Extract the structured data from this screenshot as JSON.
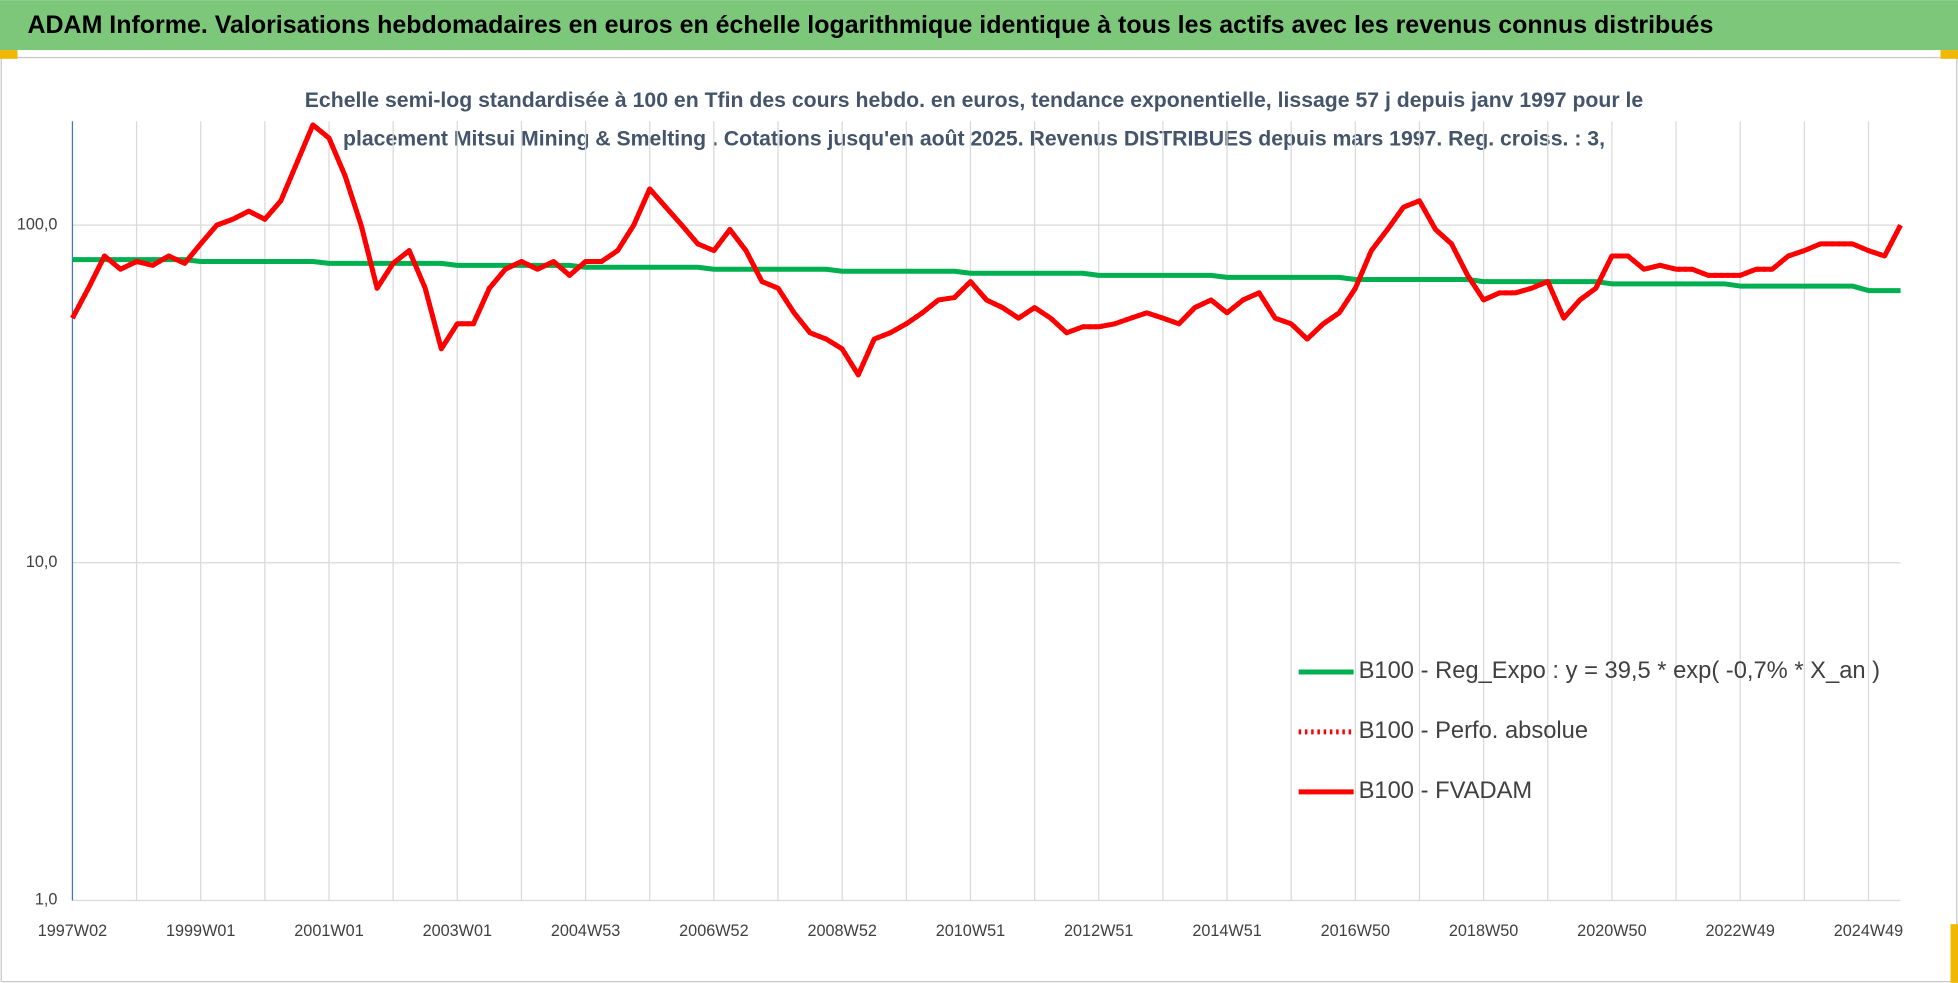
{
  "chart_data": {
    "type": "line",
    "title": "ADAM Informe. Valorisations hebdomadaires en euros en échelle logarithmique identique à tous les actifs avec les revenus connus distribués",
    "subtitle": [
      "Echelle semi-log standardisée à 100 en Tfin des cours hebdo. en euros, tendance exponentielle, lissage 57 j depuis janv 1997 pour le",
      "placement Mitsui Mining & Smelting . Cotations jusqu'en août 2025. Revenus DISTRIBUES depuis mars 1997. Reg. croiss. : 3,"
    ],
    "log_scale": true,
    "grid": true,
    "ylim": [
      1,
      203
    ],
    "yticks": [
      {
        "value": 1,
        "label": "1,0"
      },
      {
        "value": 10,
        "label": "10,0"
      },
      {
        "value": 100,
        "label": "100,0"
      }
    ],
    "legend": "right",
    "categories": [
      "1997W02",
      null,
      null,
      null,
      null,
      null,
      null,
      null,
      "1999W01",
      null,
      null,
      null,
      null,
      null,
      null,
      null,
      "2001W01",
      null,
      null,
      null,
      null,
      null,
      null,
      null,
      "2003W01",
      null,
      null,
      null,
      null,
      null,
      null,
      null,
      "2004W53",
      null,
      null,
      null,
      null,
      null,
      null,
      null,
      "2006W52",
      null,
      null,
      null,
      null,
      null,
      null,
      null,
      "2008W52",
      null,
      null,
      null,
      null,
      null,
      null,
      null,
      "2010W51",
      null,
      null,
      null,
      null,
      null,
      null,
      null,
      "2012W51",
      null,
      null,
      null,
      null,
      null,
      null,
      null,
      "2014W51",
      null,
      null,
      null,
      null,
      null,
      null,
      null,
      "2016W50",
      null,
      null,
      null,
      null,
      null,
      null,
      null,
      "2018W50",
      null,
      null,
      null,
      null,
      null,
      null,
      null,
      "2020W50",
      null,
      null,
      null,
      null,
      null,
      null,
      null,
      "2022W49",
      null,
      null,
      null,
      null,
      null,
      null,
      null,
      "2024W49",
      null,
      null
    ],
    "series": [
      {
        "name": "B100 - Reg_Expo : y = 39,5 * exp( -0,7% *  X_an )",
        "color": "#00b050",
        "dash": "solid",
        "values": [
          79,
          79,
          79,
          79,
          79,
          79,
          79,
          79,
          78,
          78,
          78,
          78,
          78,
          78,
          78,
          78,
          77,
          77,
          77,
          77,
          77,
          77,
          77,
          77,
          76,
          76,
          76,
          76,
          76,
          76,
          76,
          76,
          75,
          75,
          75,
          75,
          75,
          75,
          75,
          75,
          74,
          74,
          74,
          74,
          74,
          74,
          74,
          74,
          73,
          73,
          73,
          73,
          73,
          73,
          73,
          73,
          72,
          72,
          72,
          72,
          72,
          72,
          72,
          72,
          71,
          71,
          71,
          71,
          71,
          71,
          71,
          71,
          70,
          70,
          70,
          70,
          70,
          70,
          70,
          70,
          69,
          69,
          69,
          69,
          69,
          69,
          69,
          69,
          68,
          68,
          68,
          68,
          68,
          68,
          68,
          68,
          67,
          67,
          67,
          67,
          67,
          67,
          67,
          67,
          66,
          66,
          66,
          66,
          66,
          66,
          66,
          66,
          64,
          64,
          64
        ]
      },
      {
        "name": "B100 - Perfo. absolue",
        "color": "#ff0000",
        "dash": "dotted",
        "values": [
          53,
          65,
          81,
          74,
          78,
          76,
          81,
          77,
          88,
          100,
          104,
          110,
          104,
          118,
          153,
          198,
          181,
          140,
          100,
          65,
          77,
          84,
          65,
          43,
          51,
          51,
          65,
          74,
          78,
          74,
          78,
          71,
          78,
          78,
          84,
          100,
          128,
          113,
          100,
          88,
          84,
          97,
          84,
          68,
          65,
          55,
          48,
          46,
          43,
          36,
          46,
          48,
          51,
          55,
          60,
          61,
          68,
          60,
          57,
          53,
          57,
          53,
          48,
          50,
          50,
          51,
          53,
          55,
          53,
          51,
          57,
          60,
          55,
          60,
          63,
          53,
          51,
          46,
          51,
          55,
          65,
          84,
          97,
          113,
          118,
          97,
          88,
          71,
          60,
          63,
          63,
          65,
          68,
          53,
          60,
          65,
          81,
          81,
          74,
          76,
          74,
          74,
          71,
          71,
          71,
          74,
          74,
          81,
          84,
          88,
          88,
          88,
          84,
          81,
          100
        ]
      },
      {
        "name": "B100 - FVADAM",
        "color": "#ff0000",
        "dash": "solid",
        "values": [
          53,
          65,
          81,
          74,
          78,
          76,
          81,
          77,
          88,
          100,
          104,
          110,
          104,
          118,
          153,
          198,
          181,
          140,
          100,
          65,
          77,
          84,
          65,
          43,
          51,
          51,
          65,
          74,
          78,
          74,
          78,
          71,
          78,
          78,
          84,
          100,
          128,
          113,
          100,
          88,
          84,
          97,
          84,
          68,
          65,
          55,
          48,
          46,
          43,
          36,
          46,
          48,
          51,
          55,
          60,
          61,
          68,
          60,
          57,
          53,
          57,
          53,
          48,
          50,
          50,
          51,
          53,
          55,
          53,
          51,
          57,
          60,
          55,
          60,
          63,
          53,
          51,
          46,
          51,
          55,
          65,
          84,
          97,
          113,
          118,
          97,
          88,
          71,
          60,
          63,
          63,
          65,
          68,
          53,
          60,
          65,
          81,
          81,
          74,
          76,
          74,
          74,
          71,
          71,
          71,
          74,
          74,
          81,
          84,
          88,
          88,
          88,
          84,
          81,
          100
        ]
      }
    ]
  }
}
